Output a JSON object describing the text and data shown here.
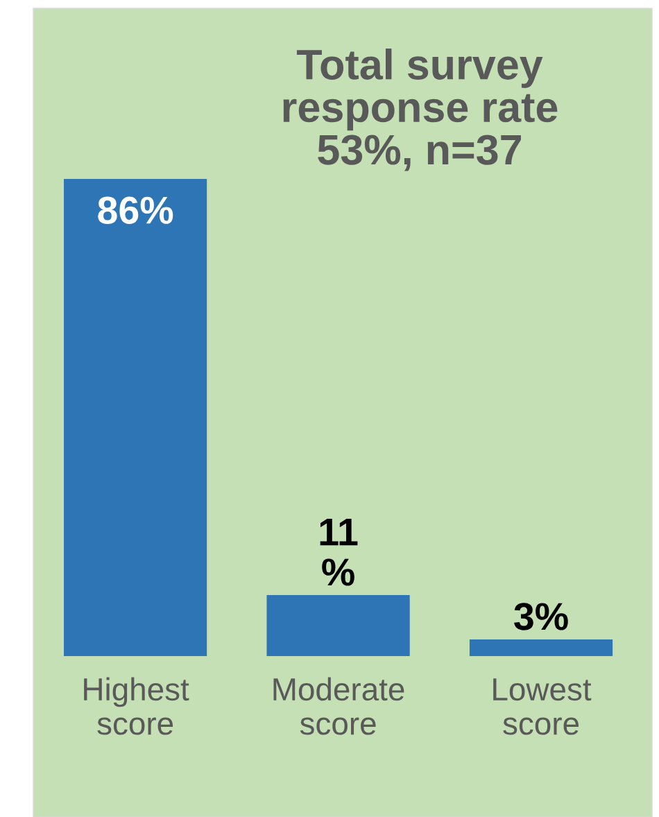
{
  "chart_data": {
    "type": "bar",
    "title": "Total survey\nresponse rate\n53%, n=37",
    "categories": [
      "Highest score",
      "Moderate score",
      "Lowest score"
    ],
    "values": [
      86,
      11,
      3
    ],
    "color": "#2e75b6",
    "value_labels": [
      "86%",
      "11\n%",
      "3%"
    ],
    "tick_labels": "x",
    "grid": false,
    "legend": false
  }
}
